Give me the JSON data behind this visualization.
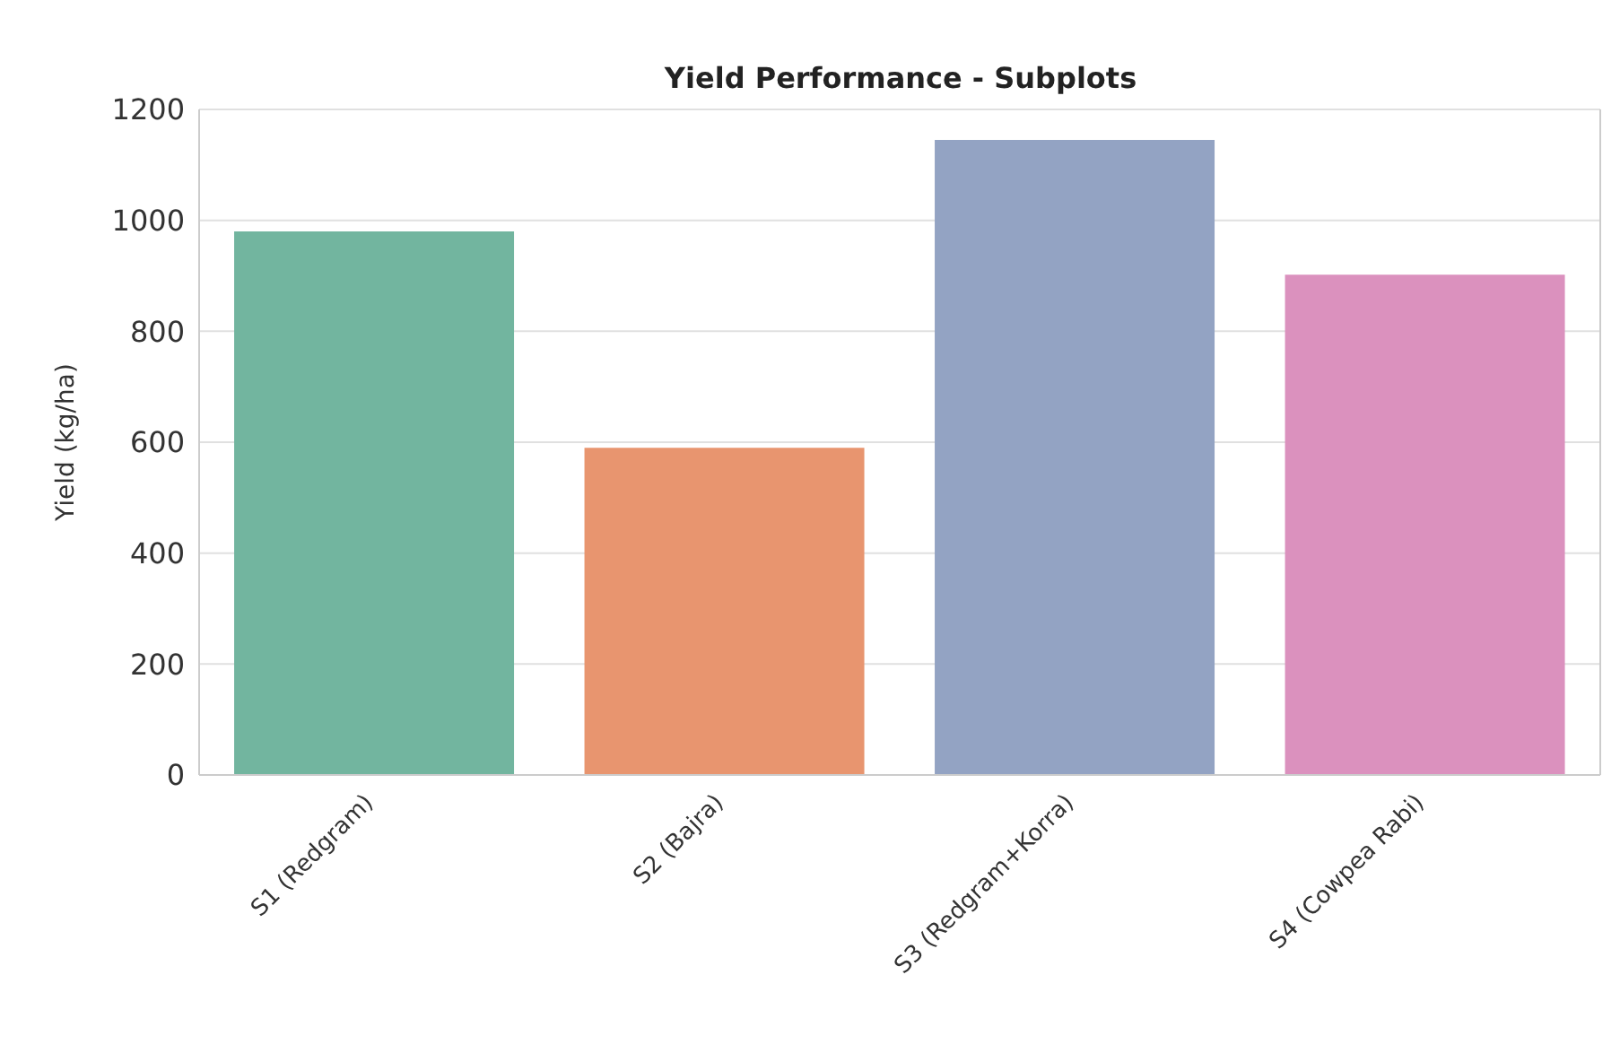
{
  "chart_data": {
    "type": "bar",
    "title": "Yield Performance - Subplots",
    "ylabel": "Yield (kg/ha)",
    "categories": [
      "S1 (Redgram)",
      "S2 (Bajra)",
      "S3 (Redgram+Korra)",
      "S4 (Cowpea Rabi)"
    ],
    "values": [
      980,
      590,
      1145,
      902
    ],
    "colors": [
      "#72b59f",
      "#e8956f",
      "#93a3c3",
      "#db91be"
    ],
    "ylim": [
      0,
      1200
    ],
    "yticks": [
      0,
      200,
      400,
      600,
      800,
      1000,
      1200
    ],
    "grid": "y",
    "legend": false
  }
}
